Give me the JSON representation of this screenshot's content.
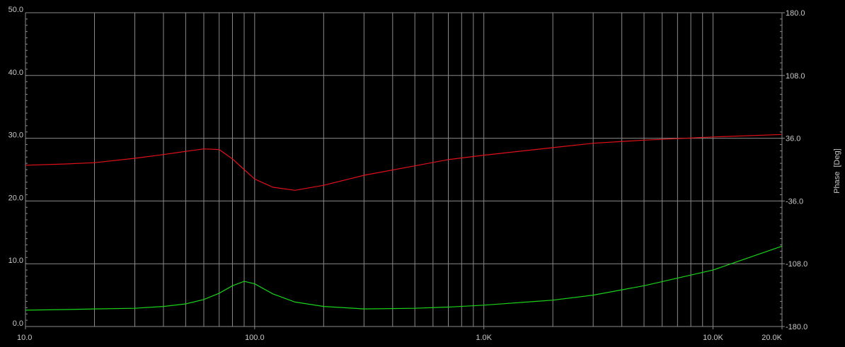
{
  "chart_data": {
    "type": "line",
    "background": "#000000",
    "grid": true,
    "grid_color": "#8a8a8a",
    "xscale": "log",
    "x": [
      10,
      15,
      20,
      30,
      40,
      50,
      60,
      70,
      80,
      90,
      100,
      120,
      150,
      200,
      300,
      500,
      700,
      1000,
      2000,
      3000,
      5000,
      10000,
      20000
    ],
    "series": [
      {
        "color": "#e0101a",
        "values": [
          25.7,
          25.9,
          26.1,
          26.8,
          27.4,
          27.9,
          28.3,
          28.2,
          26.7,
          25.0,
          23.5,
          22.2,
          21.7,
          22.5,
          24.1,
          25.6,
          26.6,
          27.3,
          28.5,
          29.2,
          29.7,
          30.2,
          30.6
        ]
      },
      {
        "color": "#19d419",
        "values": [
          2.6,
          2.7,
          2.8,
          2.9,
          3.2,
          3.6,
          4.3,
          5.3,
          6.5,
          7.2,
          6.8,
          5.2,
          3.9,
          3.2,
          2.8,
          2.9,
          3.1,
          3.4,
          4.2,
          5.0,
          6.5,
          9.0,
          12.8
        ]
      }
    ],
    "xlim": [
      10,
      20000
    ],
    "xticks": [
      {
        "value": 10,
        "label": "10.0"
      },
      {
        "value": 100,
        "label": "100.0"
      },
      {
        "value": 1000,
        "label": "1.0K"
      },
      {
        "value": 10000,
        "label": "10.0K"
      },
      {
        "value": 20000,
        "label": "20.0K"
      }
    ],
    "ylim": [
      0,
      50
    ],
    "yticks": [
      {
        "value": 0,
        "label": "0.0"
      },
      {
        "value": 10,
        "label": "10.0"
      },
      {
        "value": 20,
        "label": "20.0"
      },
      {
        "value": 30,
        "label": "30.0"
      },
      {
        "value": 40,
        "label": "40.0"
      },
      {
        "value": 50,
        "label": "50.0"
      }
    ],
    "y2lim": [
      -180,
      180
    ],
    "y2ticks": [
      {
        "value": -180,
        "label": "-180.0"
      },
      {
        "value": -108,
        "label": "-108.0"
      },
      {
        "value": -36,
        "label": "-36.0"
      },
      {
        "value": 36,
        "label": "36.0"
      },
      {
        "value": 108,
        "label": "108.0"
      },
      {
        "value": 180,
        "label": "180.0"
      }
    ],
    "y2label": "Phase  [Deg]"
  }
}
